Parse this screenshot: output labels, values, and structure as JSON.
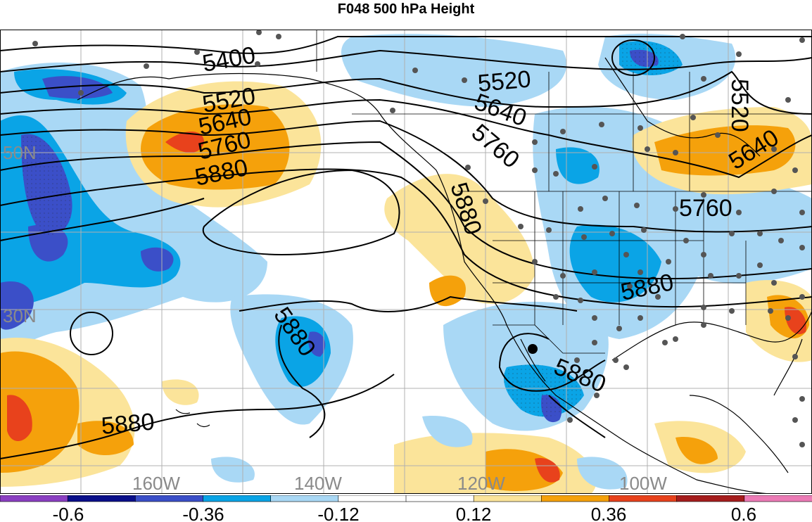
{
  "title": "F048 500 hPa Height",
  "lat_labels": [
    "50N",
    "30N"
  ],
  "lon_labels": [
    "160W",
    "140W",
    "120W",
    "100W"
  ],
  "contour_labels": [
    "5400",
    "5520",
    "5640",
    "5760",
    "5880"
  ],
  "colorbar": {
    "colors": [
      "#8b3fc2",
      "#0a0f8a",
      "#3b4fc8",
      "#0aa4e6",
      "#a9d8f5",
      "#ffffff",
      "#ffffff",
      "#fbe49a",
      "#f5a10b",
      "#e8421c",
      "#a51d1d",
      "#ec7bb6"
    ],
    "tick_labels": [
      "-0.6",
      "-0.36",
      "-0.12",
      "0.12",
      "0.36",
      "0.6"
    ]
  },
  "colors": {
    "strong_negative": "#3b4fc8",
    "negative": "#0aa4e6",
    "weak_negative": "#a9d8f5",
    "weak_positive": "#fbe49a",
    "positive": "#f5a10b",
    "strong_positive": "#e8421c"
  }
}
